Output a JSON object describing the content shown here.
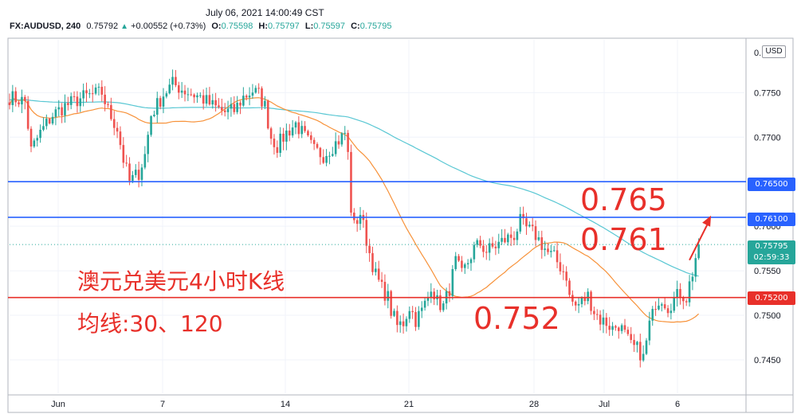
{
  "header": {
    "datetime": "July 06, 2021 14:00:49 CST",
    "symbol": "FX:AUDUSD, 240",
    "last": "0.75792",
    "change": "+0.00552 (+0.73%)",
    "open_label": "O:",
    "open": "0.75598",
    "high_label": "H:",
    "high": "0.75797",
    "low_label": "L:",
    "low": "0.75597",
    "close_label": "C:",
    "close": "0.75795"
  },
  "currency_label": "USD",
  "colors": {
    "up": "#26a69a",
    "down": "#ef5350",
    "ma30": "#f7923a",
    "ma120": "#59c7d3",
    "resistance": "#2962ff",
    "support": "#e8302a",
    "annotation": "#e8302a",
    "price_pill": "#26a69a"
  },
  "price_tags": {
    "line_765": "0.76500",
    "line_761": "0.76100",
    "line_752": "0.75200",
    "current_price": "0.75795",
    "countdown": "02:59:33"
  },
  "annotations": {
    "title": "澳元兑美元4小时K线",
    "ma_note": "均线:30、120",
    "level_765": "0.765",
    "level_761": "0.761",
    "level_752": "0.752"
  },
  "chart_data": {
    "type": "candlestick",
    "timeframe": "240",
    "x_tick_labels": [
      "Jun",
      "7",
      "14",
      "21",
      "28",
      "Jul",
      "6"
    ],
    "y_tick_labels": [
      "0.7750",
      "0.7700",
      "0.7600",
      "0.7550",
      "0.7500",
      "0.7450"
    ],
    "ylim": [
      0.7425,
      0.7795
    ],
    "horizontal_lines": [
      {
        "value": 0.765,
        "label": "0.76500",
        "color": "#2962ff"
      },
      {
        "value": 0.761,
        "label": "0.76100",
        "color": "#2962ff"
      },
      {
        "value": 0.752,
        "label": "0.75200",
        "color": "#e8302a"
      }
    ],
    "current_price": 0.75795,
    "ma_periods": [
      30,
      120
    ],
    "close_path": [
      [
        0,
        0.7745
      ],
      [
        5,
        0.774
      ],
      [
        7,
        0.7685
      ],
      [
        10,
        0.7705
      ],
      [
        14,
        0.7725
      ],
      [
        18,
        0.7735
      ],
      [
        24,
        0.7745
      ],
      [
        30,
        0.775
      ],
      [
        32,
        0.773
      ],
      [
        35,
        0.771
      ],
      [
        37,
        0.7675
      ],
      [
        39,
        0.765
      ],
      [
        42,
        0.766
      ],
      [
        44,
        0.768
      ],
      [
        46,
        0.7725
      ],
      [
        50,
        0.7748
      ],
      [
        53,
        0.776
      ],
      [
        57,
        0.7752
      ],
      [
        62,
        0.7745
      ],
      [
        66,
        0.7735
      ],
      [
        70,
        0.7728
      ],
      [
        73,
        0.773
      ],
      [
        76,
        0.7745
      ],
      [
        79,
        0.7752
      ],
      [
        81,
        0.7748
      ],
      [
        83,
        0.7735
      ],
      [
        85,
        0.77
      ],
      [
        87,
        0.769
      ],
      [
        90,
        0.7705
      ],
      [
        93,
        0.7715
      ],
      [
        96,
        0.77
      ],
      [
        99,
        0.7685
      ],
      [
        102,
        0.768
      ],
      [
        105,
        0.769
      ],
      [
        108,
        0.77
      ],
      [
        109,
        0.7705
      ],
      [
        110,
        0.768
      ],
      [
        111,
        0.762
      ],
      [
        112,
        0.76
      ],
      [
        114,
        0.7615
      ],
      [
        115,
        0.76
      ],
      [
        117,
        0.757
      ],
      [
        119,
        0.7545
      ],
      [
        121,
        0.753
      ],
      [
        123,
        0.752
      ],
      [
        124,
        0.7505
      ],
      [
        126,
        0.7488
      ],
      [
        128,
        0.7492
      ],
      [
        130,
        0.751
      ],
      [
        132,
        0.7495
      ],
      [
        134,
        0.7505
      ],
      [
        136,
        0.752
      ],
      [
        137,
        0.7535
      ],
      [
        139,
        0.7515
      ],
      [
        141,
        0.751
      ],
      [
        143,
        0.753
      ],
      [
        145,
        0.756
      ],
      [
        147,
        0.7545
      ],
      [
        149,
        0.756
      ],
      [
        151,
        0.7575
      ],
      [
        153,
        0.758
      ],
      [
        155,
        0.7572
      ],
      [
        158,
        0.7578
      ],
      [
        161,
        0.7585
      ],
      [
        164,
        0.759
      ],
      [
        166,
        0.7605
      ],
      [
        167,
        0.76
      ],
      [
        169,
        0.7595
      ],
      [
        171,
        0.759
      ],
      [
        173,
        0.758
      ],
      [
        175,
        0.757
      ],
      [
        177,
        0.7565
      ],
      [
        179,
        0.7555
      ],
      [
        181,
        0.7545
      ],
      [
        182,
        0.752
      ],
      [
        184,
        0.751
      ],
      [
        186,
        0.7515
      ],
      [
        188,
        0.7522
      ],
      [
        190,
        0.7505
      ],
      [
        192,
        0.7495
      ],
      [
        194,
        0.7492
      ],
      [
        196,
        0.7485
      ],
      [
        198,
        0.749
      ],
      [
        200,
        0.7478
      ],
      [
        202,
        0.7465
      ],
      [
        204,
        0.7462
      ],
      [
        205,
        0.7458
      ],
      [
        206,
        0.7452
      ],
      [
        207,
        0.747
      ],
      [
        208,
        0.749
      ],
      [
        209,
        0.75
      ],
      [
        210,
        0.7515
      ],
      [
        212,
        0.752
      ],
      [
        214,
        0.751
      ],
      [
        216,
        0.7518
      ],
      [
        218,
        0.7525
      ],
      [
        220,
        0.752
      ],
      [
        221,
        0.7535
      ],
      [
        222,
        0.7548
      ],
      [
        223,
        0.7565
      ],
      [
        224,
        0.75795
      ]
    ],
    "candle_count": 225
  },
  "annotation_arrow": {
    "from": [
      0.7562,
      221
    ],
    "to": [
      0.7612,
      228
    ]
  }
}
